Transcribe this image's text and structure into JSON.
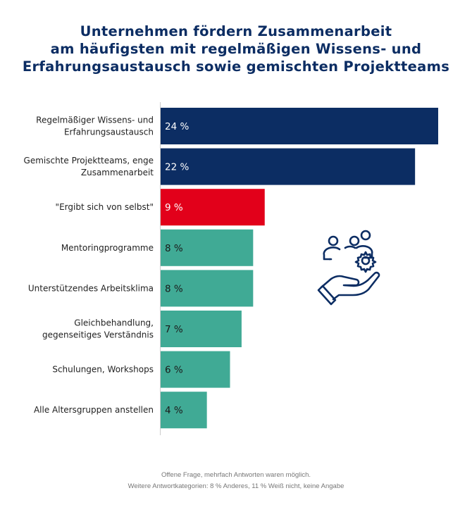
{
  "chart_data": {
    "type": "bar",
    "orientation": "horizontal",
    "title": [
      "Unternehmen fördern Zusammenarbeit",
      "am häufigsten mit regelmäßigen Wissens- und",
      "Erfahrungsaustausch sowie gemischten Projektteams"
    ],
    "categories": [
      [
        "Regelmäßiger Wissens- und",
        "Erfahrungsaustausch"
      ],
      [
        "Gemischte Projektteams, enge",
        "Zusammenarbeit"
      ],
      [
        "\"Ergibt sich von selbst\""
      ],
      [
        "Mentoringprogramme"
      ],
      [
        "Unterstützendes Arbeitsklima"
      ],
      [
        "Gleichbehandlung,",
        "gegenseitiges Verständnis"
      ],
      [
        "Schulungen, Workshops"
      ],
      [
        "Alle Altersgruppen anstellen"
      ]
    ],
    "values": [
      24,
      22,
      9,
      8,
      8,
      7,
      6,
      4
    ],
    "labels": [
      "24 %",
      "22 %",
      "9 %",
      "8 %",
      "8 %",
      "7 %",
      "6 %",
      "4 %"
    ],
    "colors": [
      "#0c2d63",
      "#0c2d63",
      "#e2001a",
      "#40aa95",
      "#40aa95",
      "#40aa95",
      "#40aa95",
      "#40aa95"
    ],
    "label_colors": [
      "#ffffff",
      "#ffffff",
      "#ffffff",
      "#1a1a1a",
      "#1a1a1a",
      "#1a1a1a",
      "#1a1a1a",
      "#1a1a1a"
    ],
    "xlim": [
      0,
      24
    ],
    "grid": false
  },
  "icon": "hand-with-people-and-gear-icon",
  "footnote": [
    "Offene Frage, mehrfach Antworten waren möglich.",
    "Weitere Antwortkategorien: 8 % Anderes, 11 % Weiß nicht, keine Angabe"
  ]
}
